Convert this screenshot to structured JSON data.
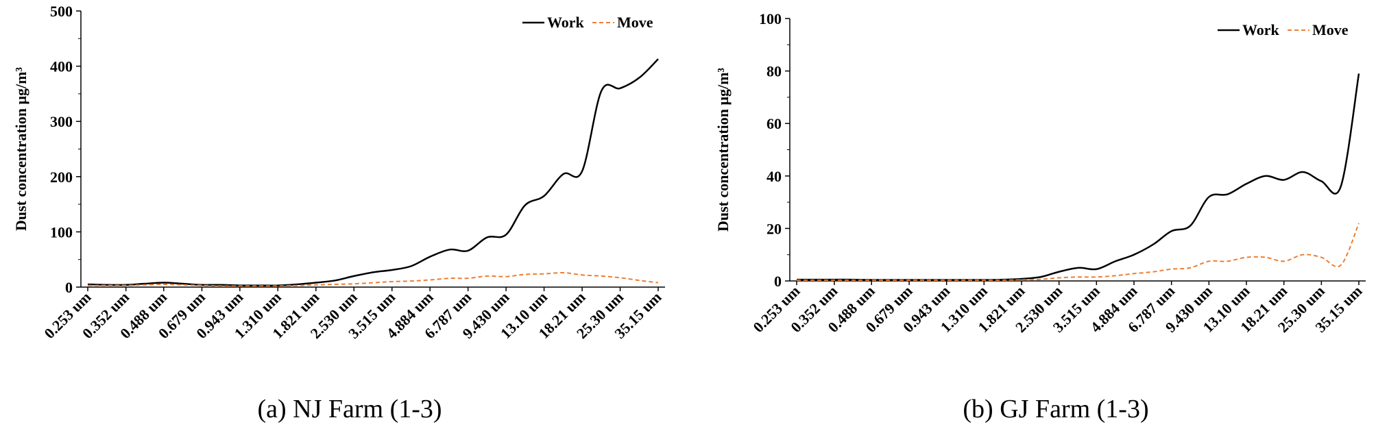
{
  "chart_data": [
    {
      "type": "line",
      "caption": "(a) NJ Farm (1-3)",
      "title": "",
      "xlabel": "",
      "ylabel": "Dust concentration μg/m³",
      "ylim": [
        0,
        500
      ],
      "yticks": [
        "0",
        "100",
        "200",
        "300",
        "400",
        "500"
      ],
      "categories": [
        "0.253 um",
        "0.352 um",
        "0.488 um",
        "0.679 um",
        "0.943 um",
        "1.310 um",
        "1.821 um",
        "2.530 um",
        "3.515 um",
        "4.884 um",
        "6.787 um",
        "9.430 um",
        "13.10 um",
        "18.21 um",
        "25.30 um",
        "35.15 um"
      ],
      "x": [
        0.253,
        0.3,
        0.352,
        0.41,
        0.488,
        0.58,
        0.679,
        0.8,
        0.943,
        1.12,
        1.31,
        1.55,
        1.821,
        2.15,
        2.53,
        3.0,
        3.515,
        4.15,
        4.884,
        5.8,
        6.787,
        8.0,
        9.43,
        11.1,
        13.1,
        15.5,
        18.21,
        21.5,
        25.3,
        30.0,
        35.15
      ],
      "legend": "top-right",
      "grid": false,
      "series": [
        {
          "name": "Work",
          "style": "solid",
          "color": "#000000",
          "values": [
            5,
            4,
            4,
            6,
            8,
            6,
            4,
            4,
            3,
            3,
            3,
            5,
            8,
            12,
            20,
            27,
            31,
            38,
            55,
            68,
            66,
            90,
            95,
            148,
            165,
            205,
            210,
            355,
            360,
            380,
            413
          ]
        },
        {
          "name": "Move",
          "style": "dashed",
          "color": "#ED7D31",
          "values": [
            3,
            3,
            3,
            4,
            5,
            4,
            3,
            2,
            2,
            2,
            2,
            3,
            4,
            5,
            6,
            8,
            10,
            11,
            13,
            16,
            16,
            20,
            19,
            23,
            24,
            26,
            22,
            20,
            17,
            12,
            8
          ]
        }
      ]
    },
    {
      "type": "line",
      "caption": "(b) GJ Farm (1-3)",
      "title": "",
      "xlabel": "",
      "ylabel": "Dust concentration μg/m³",
      "ylim": [
        0,
        100
      ],
      "yticks": [
        "0",
        "20",
        "40",
        "60",
        "80",
        "100"
      ],
      "categories": [
        "0.253 um",
        "0.352 um",
        "0.488 um",
        "0.679 um",
        "0.943 um",
        "1.310 um",
        "1.821 um",
        "2.530 um",
        "3.515 um",
        "4.884 um",
        "6.787 um",
        "9.430 um",
        "13.10 um",
        "18.21 um",
        "25.30 um",
        "35.15 um"
      ],
      "x": [
        0.253,
        0.3,
        0.352,
        0.41,
        0.488,
        0.58,
        0.679,
        0.8,
        0.943,
        1.12,
        1.31,
        1.55,
        1.821,
        2.15,
        2.53,
        3.0,
        3.515,
        4.15,
        4.884,
        5.8,
        6.787,
        8.0,
        9.43,
        11.1,
        13.1,
        15.5,
        18.21,
        21.5,
        25.3,
        30.0,
        35.15
      ],
      "legend": "top-right",
      "grid": false,
      "series": [
        {
          "name": "Work",
          "style": "solid",
          "color": "#000000",
          "values": [
            0.5,
            0.5,
            0.5,
            0.5,
            0.4,
            0.4,
            0.4,
            0.4,
            0.4,
            0.4,
            0.4,
            0.5,
            0.8,
            1.5,
            3.5,
            5,
            4.5,
            7.5,
            10,
            14,
            19,
            21,
            32,
            33,
            37,
            40,
            38.5,
            41.5,
            38,
            36,
            79
          ]
        },
        {
          "name": "Move",
          "style": "dashed",
          "color": "#ED7D31",
          "values": [
            0.3,
            0.3,
            0.3,
            0.3,
            0.3,
            0.3,
            0.3,
            0.3,
            0.3,
            0.3,
            0.3,
            0.3,
            0.4,
            0.6,
            1.2,
            1.5,
            1.5,
            2,
            2.8,
            3.5,
            4.5,
            5,
            7.5,
            7.5,
            9,
            9,
            7.5,
            10,
            9,
            6,
            22
          ]
        }
      ]
    }
  ]
}
